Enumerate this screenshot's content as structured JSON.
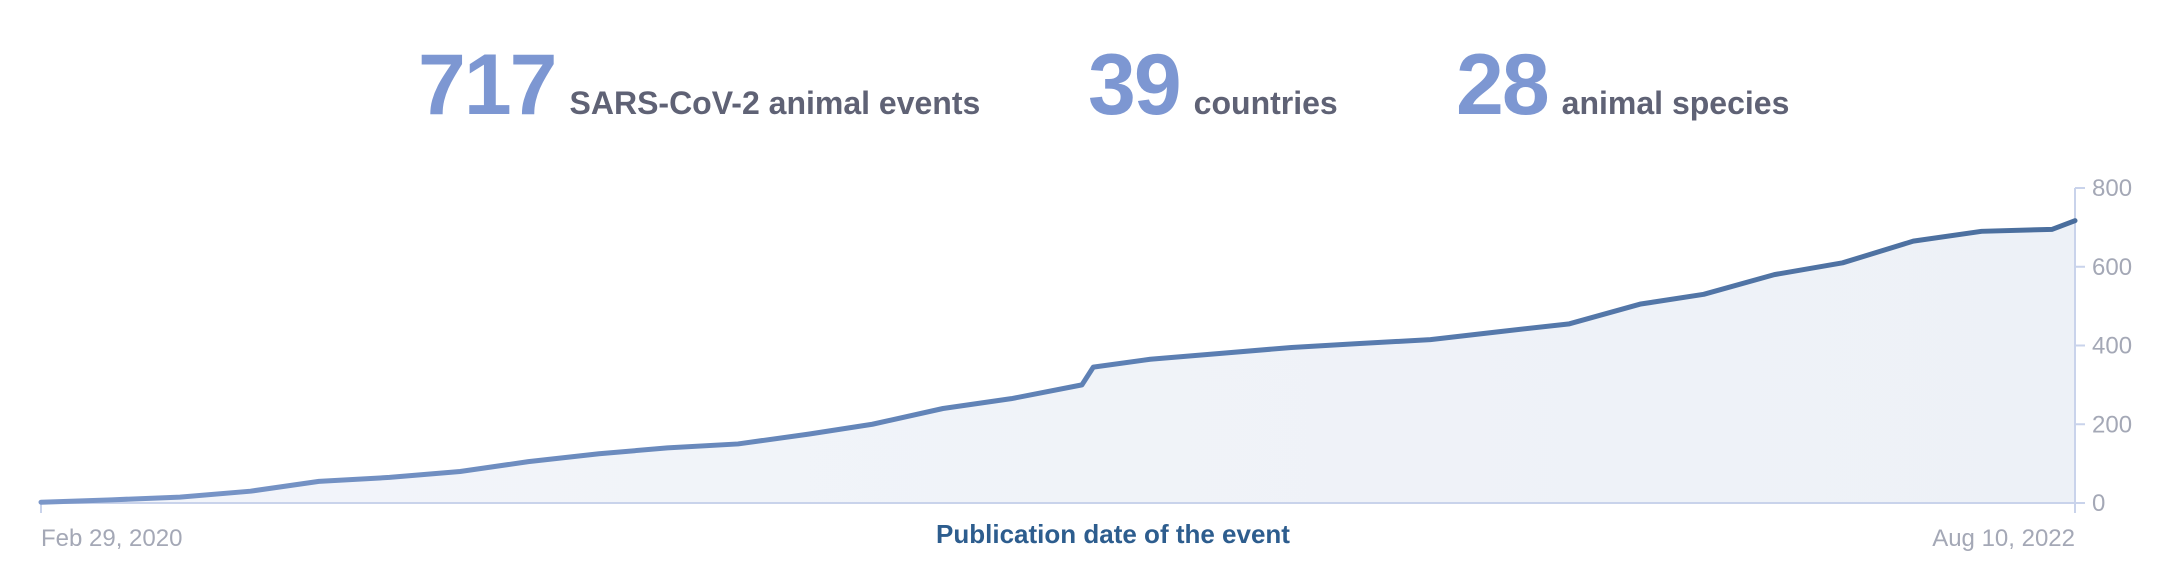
{
  "stats": [
    {
      "value": "717",
      "label": "SARS-CoV-2 animal events"
    },
    {
      "value": "39",
      "label": "countries"
    },
    {
      "value": "28",
      "label": "animal species"
    }
  ],
  "colors": {
    "stat_number": "#7d97d2",
    "stat_label": "#5f6275",
    "line": "#4a6e9d",
    "line_light": "#7b97c9",
    "area_fill": "#edf1f7",
    "axis": "#c9d3eb",
    "tick_text": "#a4a8b6",
    "axis_title": "#2d5d8e"
  },
  "chart_data": {
    "type": "area",
    "xlabel": "Publication date of the event",
    "ylabel": "",
    "x_start_label": "Feb 29, 2020",
    "x_end_label": "Aug 10, 2022",
    "x_range": [
      "2020-02-29",
      "2022-08-10"
    ],
    "ylim": [
      0,
      800
    ],
    "yticks": [
      0,
      200,
      400,
      600,
      800
    ],
    "y_axis_side": "right",
    "grid": false,
    "series": [
      {
        "x": [
          "2020-02-29",
          "2020-03-31",
          "2020-04-30",
          "2020-05-31",
          "2020-06-30",
          "2020-07-31",
          "2020-08-31",
          "2020-09-30",
          "2020-10-31",
          "2020-11-30",
          "2020-12-31",
          "2021-01-31",
          "2021-02-28",
          "2021-03-31",
          "2021-04-30",
          "2021-05-31",
          "2021-06-05",
          "2021-06-30",
          "2021-07-31",
          "2021-08-31",
          "2021-09-30",
          "2021-10-31",
          "2021-11-30",
          "2021-12-31",
          "2022-01-31",
          "2022-02-28",
          "2022-03-31",
          "2022-04-30",
          "2022-05-31",
          "2022-06-30",
          "2022-07-31",
          "2022-08-10"
        ],
        "values": [
          2,
          8,
          15,
          30,
          55,
          65,
          80,
          105,
          125,
          140,
          150,
          175,
          200,
          240,
          265,
          300,
          345,
          365,
          380,
          395,
          405,
          415,
          435,
          455,
          505,
          530,
          580,
          610,
          665,
          690,
          695,
          717
        ]
      }
    ]
  }
}
